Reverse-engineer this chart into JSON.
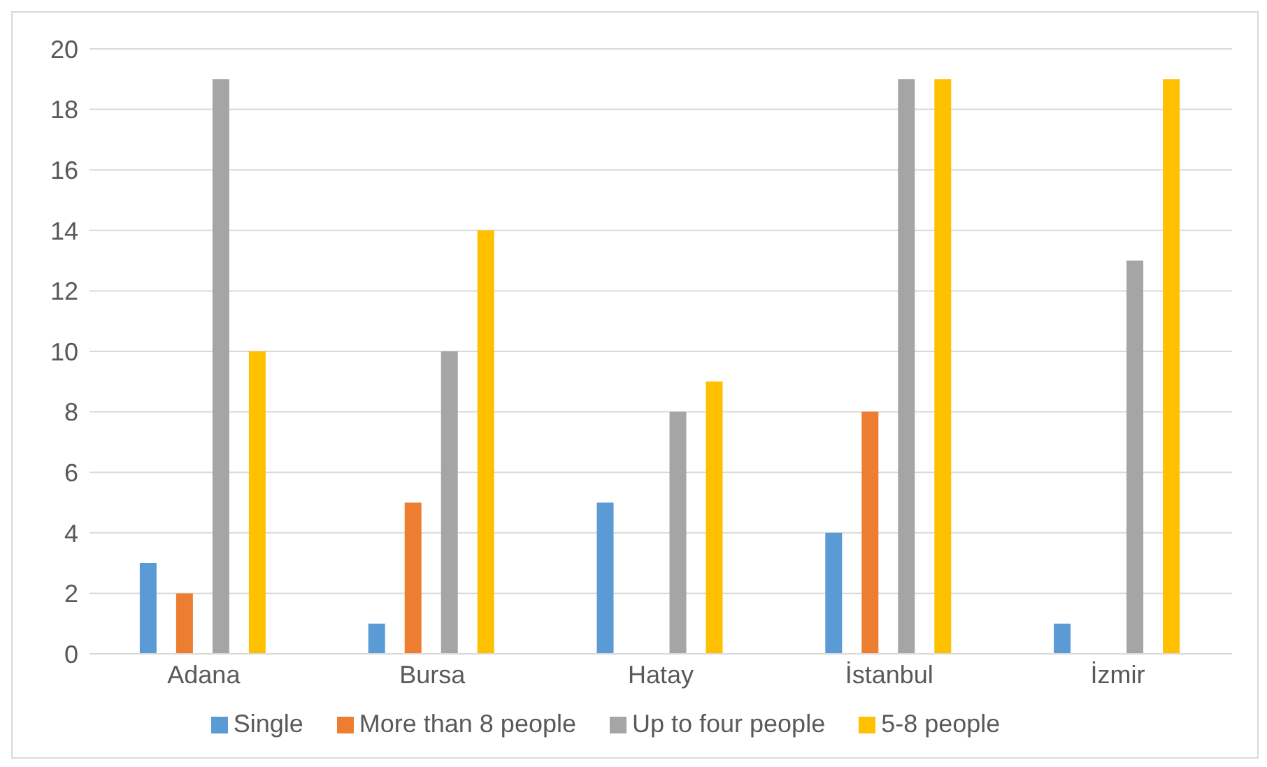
{
  "chart_data": {
    "type": "bar",
    "categories": [
      "Adana",
      "Bursa",
      "Hatay",
      "İstanbul",
      "İzmir"
    ],
    "series": [
      {
        "name": "Single",
        "color": "#5b9bd5",
        "values": [
          3,
          1,
          5,
          4,
          1
        ]
      },
      {
        "name": "More than 8 people",
        "color": "#ed7d31",
        "values": [
          2,
          5,
          0,
          8,
          0
        ]
      },
      {
        "name": "Up to four people",
        "color": "#a5a5a5",
        "values": [
          19,
          10,
          8,
          19,
          13
        ]
      },
      {
        "name": "5-8 people",
        "color": "#ffc000",
        "values": [
          10,
          14,
          9,
          19,
          19
        ]
      }
    ],
    "ylim": [
      0,
      20
    ],
    "yticks": [
      0,
      2,
      4,
      6,
      8,
      10,
      12,
      14,
      16,
      18,
      20
    ],
    "grid": "y",
    "legend": "bottom"
  }
}
